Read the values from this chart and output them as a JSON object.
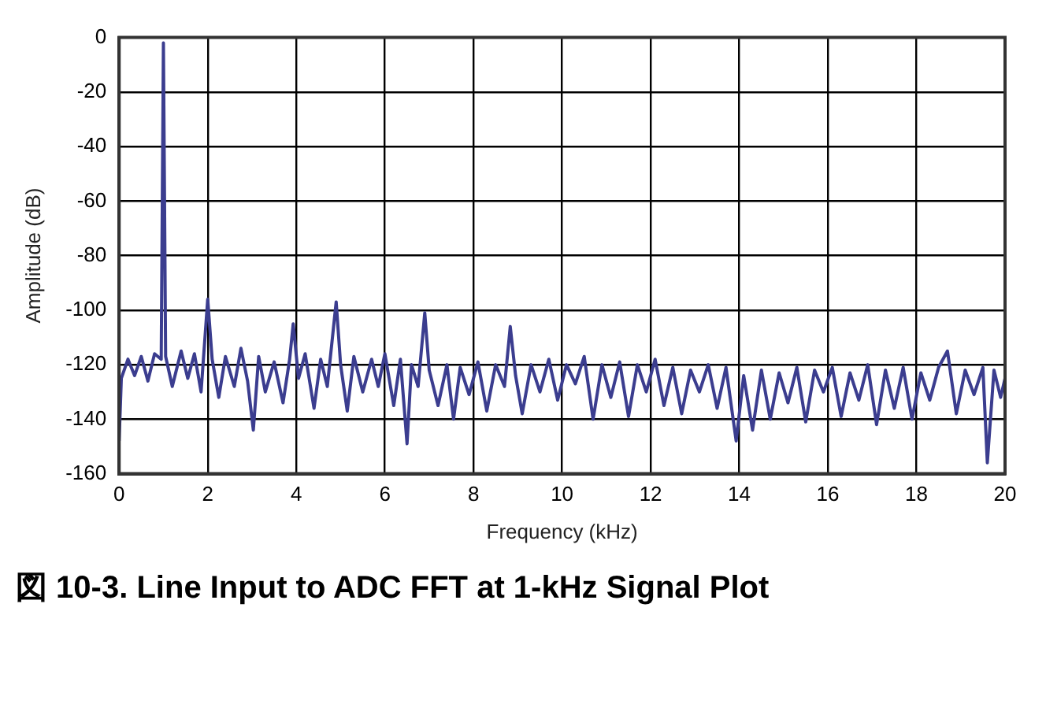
{
  "chart_data": {
    "type": "line",
    "title": "図 10-3. Line Input to ADC FFT at 1-kHz Signal Plot",
    "xlabel": "Frequency (kHz)",
    "ylabel": "Amplitude (dB)",
    "xlim": [
      0,
      20
    ],
    "xticks": [
      0,
      2,
      4,
      6,
      8,
      10,
      12,
      14,
      16,
      18,
      20
    ],
    "ylim": [
      -160,
      0
    ],
    "yticks": [
      -160,
      -140,
      -120,
      -100,
      -80,
      -60,
      -40,
      -20,
      0
    ],
    "grid": true,
    "legend": false,
    "marker": "none",
    "line_style": "solid",
    "series": [
      {
        "color": "#3b3d8f",
        "x": [
          0,
          0.05,
          0.2,
          0.35,
          0.5,
          0.65,
          0.8,
          0.95,
          1.0,
          1.05,
          1.2,
          1.4,
          1.55,
          1.7,
          1.85,
          2.0,
          2.1,
          2.25,
          2.4,
          2.6,
          2.75,
          2.9,
          3.03,
          3.15,
          3.3,
          3.5,
          3.7,
          3.85,
          3.93,
          4.05,
          4.2,
          4.4,
          4.55,
          4.7,
          4.9,
          5.0,
          5.15,
          5.3,
          5.5,
          5.7,
          5.85,
          6.0,
          6.2,
          6.35,
          6.5,
          6.6,
          6.75,
          6.9,
          7.0,
          7.2,
          7.4,
          7.55,
          7.7,
          7.9,
          8.1,
          8.3,
          8.5,
          8.7,
          8.83,
          8.95,
          9.1,
          9.3,
          9.5,
          9.7,
          9.9,
          10.1,
          10.3,
          10.5,
          10.7,
          10.9,
          11.1,
          11.3,
          11.5,
          11.7,
          11.9,
          12.1,
          12.3,
          12.5,
          12.7,
          12.9,
          13.1,
          13.3,
          13.5,
          13.7,
          13.93,
          14.1,
          14.3,
          14.5,
          14.7,
          14.9,
          15.1,
          15.3,
          15.5,
          15.7,
          15.9,
          16.1,
          16.3,
          16.5,
          16.7,
          16.9,
          17.1,
          17.3,
          17.5,
          17.7,
          17.9,
          18.1,
          18.3,
          18.5,
          18.7,
          18.9,
          19.1,
          19.3,
          19.5,
          19.6,
          19.75,
          19.9,
          20.0
        ],
        "values": [
          -148,
          -125,
          -118,
          -124,
          -117,
          -126,
          -116,
          -118,
          -2,
          -117,
          -128,
          -115,
          -125,
          -116,
          -130,
          -96,
          -118,
          -132,
          -117,
          -128,
          -114,
          -126,
          -144,
          -117,
          -130,
          -119,
          -134,
          -118,
          -105,
          -125,
          -116,
          -136,
          -118,
          -128,
          -97,
          -120,
          -137,
          -117,
          -130,
          -118,
          -128,
          -116,
          -135,
          -118,
          -149,
          -120,
          -128,
          -101,
          -122,
          -135,
          -120,
          -140,
          -121,
          -131,
          -119,
          -137,
          -120,
          -128,
          -106,
          -124,
          -138,
          -120,
          -130,
          -118,
          -133,
          -120,
          -127,
          -117,
          -140,
          -120,
          -132,
          -119,
          -139,
          -120,
          -130,
          -118,
          -135,
          -121,
          -138,
          -122,
          -130,
          -120,
          -136,
          -121,
          -148,
          -124,
          -144,
          -122,
          -140,
          -123,
          -134,
          -121,
          -141,
          -122,
          -130,
          -121,
          -139,
          -123,
          -133,
          -120,
          -142,
          -122,
          -136,
          -121,
          -140,
          -123,
          -133,
          -121,
          -115,
          -138,
          -122,
          -131,
          -121,
          -156,
          -122,
          -132,
          -125
        ]
      }
    ]
  }
}
